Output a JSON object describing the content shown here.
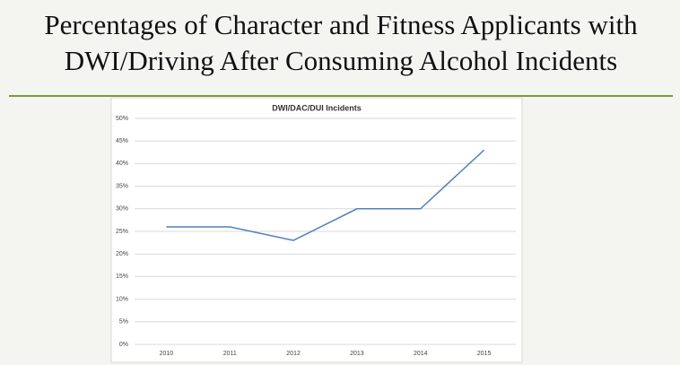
{
  "slide": {
    "title_lines": [
      "Percentages of Character and Fitness Applicants with",
      "DWI/Driving After Consuming Alcohol Incidents"
    ]
  },
  "chart_data": {
    "type": "line",
    "title": "DWI/DAC/DUI Incidents",
    "categories": [
      "2010",
      "2011",
      "2012",
      "2013",
      "2014",
      "2015"
    ],
    "values": [
      26,
      26,
      23,
      30,
      30,
      43
    ],
    "color": "#4f81bd",
    "ylim": [
      0,
      50
    ],
    "yticks": [
      {
        "value": 0,
        "label": "0%"
      },
      {
        "value": 5,
        "label": "5%"
      },
      {
        "value": 10,
        "label": "10%"
      },
      {
        "value": 15,
        "label": "15%"
      },
      {
        "value": 20,
        "label": "20%"
      },
      {
        "value": 25,
        "label": "25%"
      },
      {
        "value": 30,
        "label": "30%"
      },
      {
        "value": 35,
        "label": "35%"
      },
      {
        "value": 40,
        "label": "40%"
      },
      {
        "value": 45,
        "label": "45%"
      },
      {
        "value": 50,
        "label": "50%"
      }
    ],
    "grid": true
  }
}
